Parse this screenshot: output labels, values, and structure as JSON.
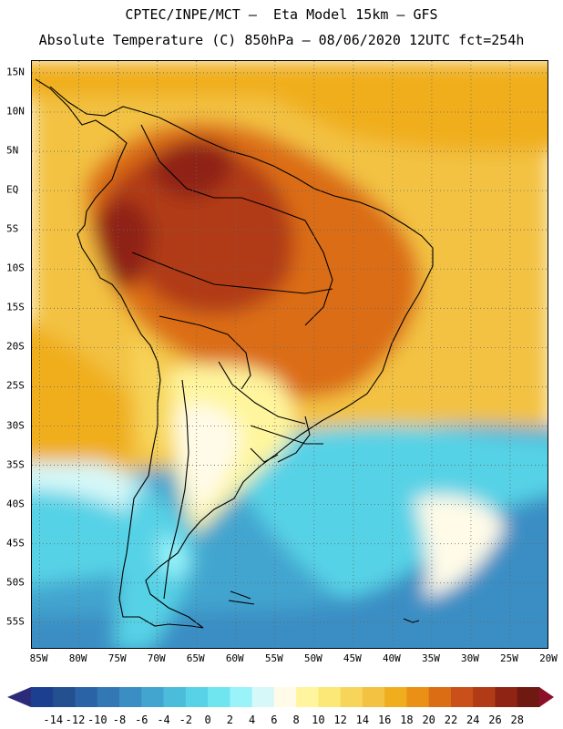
{
  "header": {
    "line1": "CPTEC/INPE/MCT –  Eta Model 15km – GFS",
    "line2": "Absolute Temperature (C) 850hPa – 08/06/2020 12UTC fct=254h"
  },
  "map": {
    "lat_labels": [
      "15N",
      "10N",
      "5N",
      "EQ",
      "5S",
      "10S",
      "15S",
      "20S",
      "25S",
      "30S",
      "35S",
      "40S",
      "45S",
      "50S",
      "55S"
    ],
    "lon_labels": [
      "85W",
      "80W",
      "75W",
      "70W",
      "65W",
      "60W",
      "55W",
      "50W",
      "45W",
      "40W",
      "35W",
      "30W",
      "25W",
      "20W"
    ],
    "lat_values": [
      15,
      10,
      5,
      0,
      -5,
      -10,
      -15,
      -20,
      -25,
      -30,
      -35,
      -40,
      -45,
      -50,
      -55
    ],
    "lon_values": [
      -85,
      -80,
      -75,
      -70,
      -65,
      -60,
      -55,
      -50,
      -45,
      -40,
      -35,
      -30,
      -25,
      -20
    ],
    "lat_range": [
      -58.5,
      16.5
    ],
    "lon_range": [
      -86,
      -20
    ],
    "field": "850hPa absolute temperature",
    "units": "C"
  },
  "colorbar": {
    "labels": [
      "-14",
      "-12",
      "-10",
      "-8",
      "-6",
      "-4",
      "-2",
      "0",
      "2",
      "4",
      "6",
      "8",
      "10",
      "12",
      "14",
      "16",
      "18",
      "20",
      "22",
      "24",
      "26",
      "28"
    ],
    "colors": [
      "#1d3f8f",
      "#24508f",
      "#2b64a6",
      "#3378b4",
      "#3b8ec4",
      "#42a5cf",
      "#4bbcd9",
      "#57d2e6",
      "#6fe6ef",
      "#99f3f8",
      "#d6f8f8",
      "#fffbe8",
      "#fff59e",
      "#fce877",
      "#f7d55a",
      "#f3c243",
      "#f0ae1f",
      "#ea9016",
      "#db6d14",
      "#c9501a",
      "#b13b17",
      "#8f2415",
      "#6e1a12"
    ],
    "low_arrow_color": "#2b2b7a",
    "high_arrow_color": "#8c0f2a"
  }
}
